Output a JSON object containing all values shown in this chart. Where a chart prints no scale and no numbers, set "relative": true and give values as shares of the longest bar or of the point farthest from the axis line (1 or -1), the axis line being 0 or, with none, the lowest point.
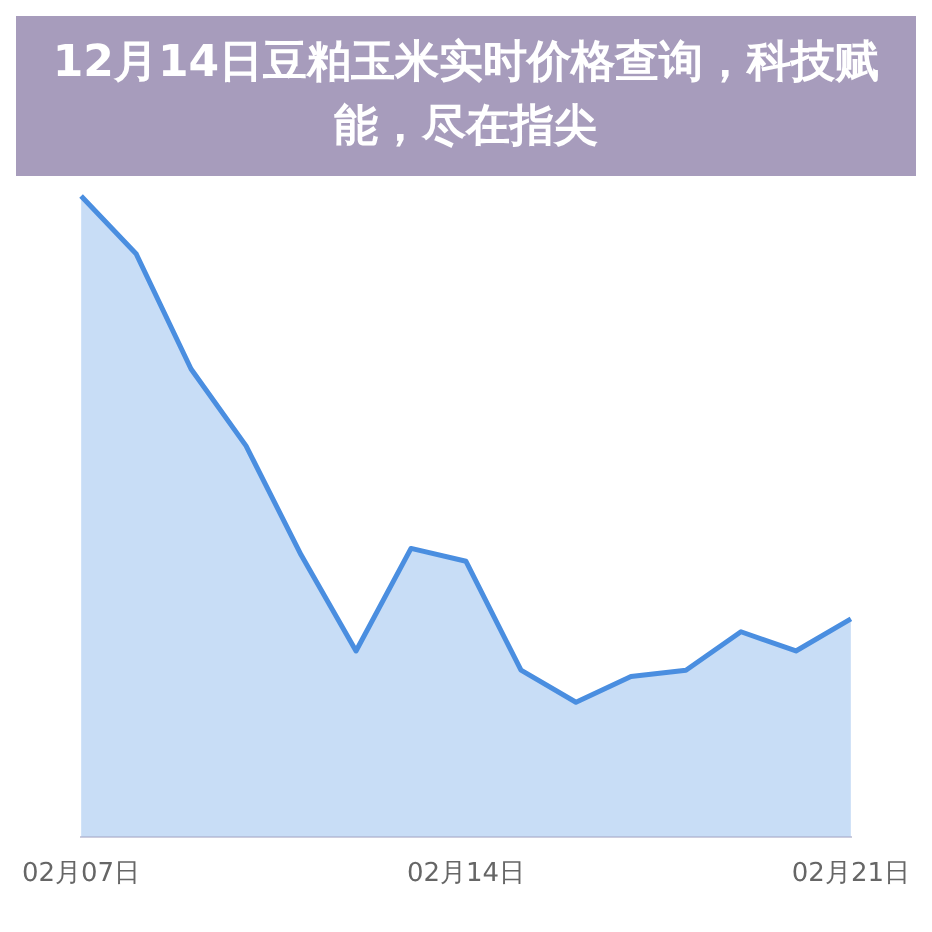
{
  "chart_data": {
    "type": "area",
    "title": "12月14日豆粕玉米实时价格查询，科技赋能，尽在指尖",
    "relative": true,
    "categories": [
      "02月07日",
      null,
      null,
      null,
      null,
      null,
      null,
      "02月14日",
      null,
      null,
      null,
      null,
      null,
      null,
      "02月21日"
    ],
    "series": [
      {
        "color": "#4a8ee0",
        "values": [
          1.0,
          0.91,
          0.73,
          0.61,
          0.44,
          0.29,
          0.45,
          0.43,
          0.26,
          0.21,
          0.25,
          0.26,
          0.32,
          0.29,
          0.34
        ]
      }
    ],
    "legend": false
  }
}
